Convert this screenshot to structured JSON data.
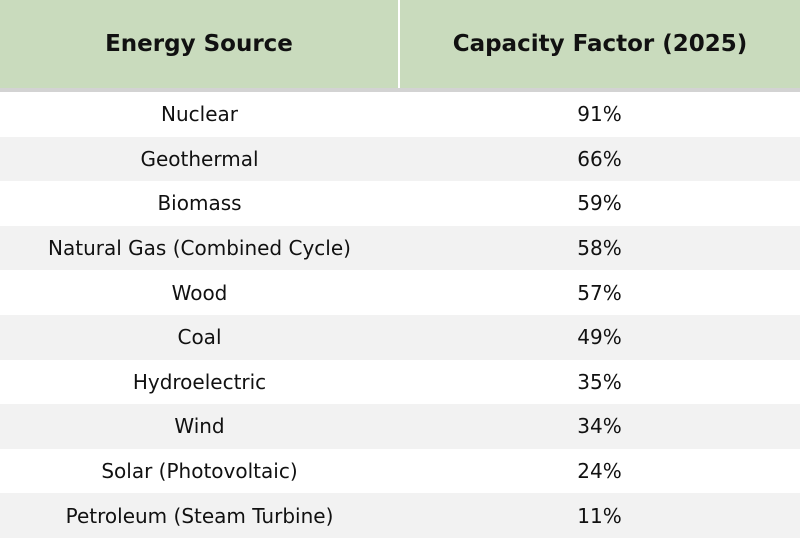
{
  "table": {
    "headers": [
      "Energy Source",
      "Capacity Factor (2025)"
    ],
    "rows": [
      [
        "Nuclear",
        "91%"
      ],
      [
        "Geothermal",
        "66%"
      ],
      [
        "Biomass",
        "59%"
      ],
      [
        "Natural Gas (Combined Cycle)",
        "58%"
      ],
      [
        "Wood",
        "57%"
      ],
      [
        "Coal",
        "49%"
      ],
      [
        "Hydroelectric",
        "35%"
      ],
      [
        "Wind",
        "34%"
      ],
      [
        "Solar (Photovoltaic)",
        "24%"
      ],
      [
        "Petroleum (Steam Turbine)",
        "11%"
      ]
    ]
  }
}
